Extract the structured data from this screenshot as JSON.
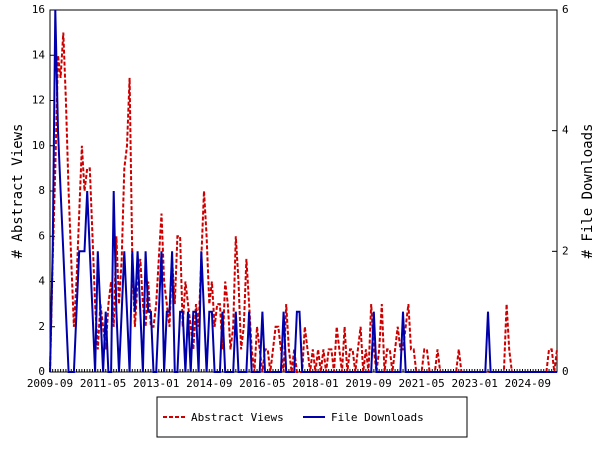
{
  "chart_data": {
    "type": "line",
    "categories": [
      "2009-09",
      null,
      null,
      null,
      null,
      null,
      null,
      null,
      null,
      null,
      null,
      null,
      null,
      null,
      null,
      null,
      null,
      null,
      null,
      null,
      "2011-05",
      null,
      null,
      null,
      null,
      null,
      null,
      null,
      null,
      null,
      null,
      null,
      null,
      null,
      null,
      null,
      null,
      null,
      null,
      null,
      "2013-01",
      null,
      null,
      null,
      null,
      null,
      null,
      null,
      null,
      null,
      null,
      null,
      null,
      null,
      null,
      null,
      null,
      null,
      null,
      null,
      "2014-09",
      null,
      null,
      null,
      null,
      null,
      null,
      null,
      null,
      null,
      null,
      null,
      null,
      null,
      null,
      null,
      null,
      null,
      null,
      null,
      "2016-05",
      null,
      null,
      null,
      null,
      null,
      null,
      null,
      null,
      null,
      null,
      null,
      null,
      null,
      null,
      null,
      null,
      null,
      null,
      null,
      "2018-01",
      null,
      null,
      null,
      null,
      null,
      null,
      null,
      null,
      null,
      null,
      null,
      null,
      null,
      null,
      null,
      null,
      null,
      null,
      null,
      "2019-09",
      null,
      null,
      null,
      null,
      null,
      null,
      null,
      null,
      null,
      null,
      null,
      null,
      null,
      null,
      null,
      null,
      null,
      null,
      null,
      "2021-05",
      null,
      null,
      null,
      null,
      null,
      null,
      null,
      null,
      null,
      null,
      null,
      null,
      null,
      null,
      null,
      null,
      null,
      null,
      null,
      "2023-01",
      null,
      null,
      null,
      null,
      null,
      null,
      null,
      null,
      null,
      null,
      null,
      null,
      null,
      null,
      null,
      null,
      null,
      null,
      null,
      "2024-09",
      null,
      null,
      null,
      null,
      null,
      null,
      null,
      null,
      null,
      null,
      null
    ],
    "series": [
      {
        "name": "Abstract Views",
        "color": "#cc0000",
        "values": [
          0,
          5,
          9,
          14,
          13,
          15,
          12,
          8,
          5,
          2,
          4,
          7,
          10,
          8,
          9,
          9,
          6,
          3,
          1,
          3,
          2,
          1,
          3,
          4,
          2,
          6,
          3,
          5,
          9,
          10,
          13,
          5,
          2,
          4,
          5,
          3,
          2,
          4,
          2,
          2,
          3,
          5,
          7,
          4,
          3,
          2,
          5,
          3,
          6,
          6,
          2,
          4,
          3,
          2,
          1,
          3,
          2,
          5,
          8,
          6,
          3,
          4,
          2,
          3,
          3,
          1,
          4,
          3,
          1,
          2,
          6,
          4,
          1,
          2,
          5,
          3,
          1,
          0,
          2,
          1,
          0,
          1,
          1,
          0,
          1,
          2,
          2,
          1,
          0,
          3,
          1,
          0,
          1,
          0,
          0,
          0,
          2,
          1,
          0,
          1,
          0,
          1,
          0,
          1,
          0,
          1,
          1,
          0,
          2,
          1,
          0,
          2,
          0,
          1,
          1,
          0,
          1,
          2,
          0,
          1,
          0,
          3,
          1,
          0,
          1,
          3,
          0,
          1,
          1,
          0,
          1,
          2,
          1,
          1,
          2,
          3,
          1,
          1,
          0,
          0,
          0,
          1,
          1,
          0,
          0,
          0,
          1,
          0,
          0,
          0,
          0,
          0,
          0,
          0,
          1,
          0,
          0,
          0,
          0,
          0,
          0,
          0,
          0,
          0,
          0,
          0,
          0,
          0,
          0,
          0,
          0,
          0,
          3,
          1,
          0,
          0,
          0,
          0,
          0,
          0,
          0,
          0,
          0,
          0,
          0,
          0,
          0,
          0,
          1,
          1,
          0,
          1
        ]
      },
      {
        "name": "File Downloads",
        "color": "#0000aa",
        "axis": "y2",
        "values": [
          0,
          2,
          6,
          4,
          3,
          2,
          1,
          0,
          0,
          0,
          1,
          2,
          2,
          2,
          3,
          2,
          1,
          0,
          2,
          1,
          0,
          1,
          0,
          0,
          3,
          1,
          0,
          1,
          2,
          1,
          0,
          2,
          1,
          2,
          1,
          0,
          2,
          1,
          1,
          0,
          0,
          1,
          2,
          0,
          1,
          1,
          2,
          0,
          0,
          1,
          1,
          0,
          1,
          0,
          1,
          1,
          0,
          2,
          1,
          0,
          1,
          1,
          0,
          0,
          0,
          1,
          0,
          0,
          0,
          0,
          1,
          0,
          0,
          0,
          0,
          1,
          0,
          0,
          0,
          0,
          1,
          0,
          0,
          0,
          0,
          0,
          0,
          0,
          1,
          0,
          0,
          0,
          0,
          1,
          1,
          0,
          0,
          0,
          0,
          0,
          0,
          0,
          0,
          0,
          0,
          0,
          0,
          0,
          0,
          0,
          0,
          0,
          0,
          0,
          0,
          0,
          0,
          0,
          0,
          0,
          0,
          0,
          1,
          0,
          0,
          0,
          0,
          0,
          0,
          0,
          0,
          0,
          0,
          1,
          0,
          0,
          0,
          0,
          0,
          0,
          0,
          0,
          0,
          0,
          0,
          0,
          0,
          0,
          0,
          0,
          0,
          0,
          0,
          0,
          0,
          0,
          0,
          0,
          0,
          0,
          0,
          0,
          0,
          0,
          0,
          1,
          0,
          0,
          0,
          0,
          0,
          0,
          0,
          0,
          0,
          0,
          0,
          0,
          0,
          0,
          0,
          0,
          0,
          0,
          0,
          0,
          0,
          0,
          0,
          0,
          0,
          0
        ]
      }
    ],
    "y_label": "# Abstract Views",
    "y2_label": "# File Downloads",
    "ylim": [
      0,
      16
    ],
    "yticks": [
      0,
      2,
      4,
      6,
      8,
      10,
      12,
      14,
      16
    ],
    "y2lim": [
      0,
      6
    ],
    "y2ticks": [
      0,
      2,
      4,
      6
    ]
  }
}
